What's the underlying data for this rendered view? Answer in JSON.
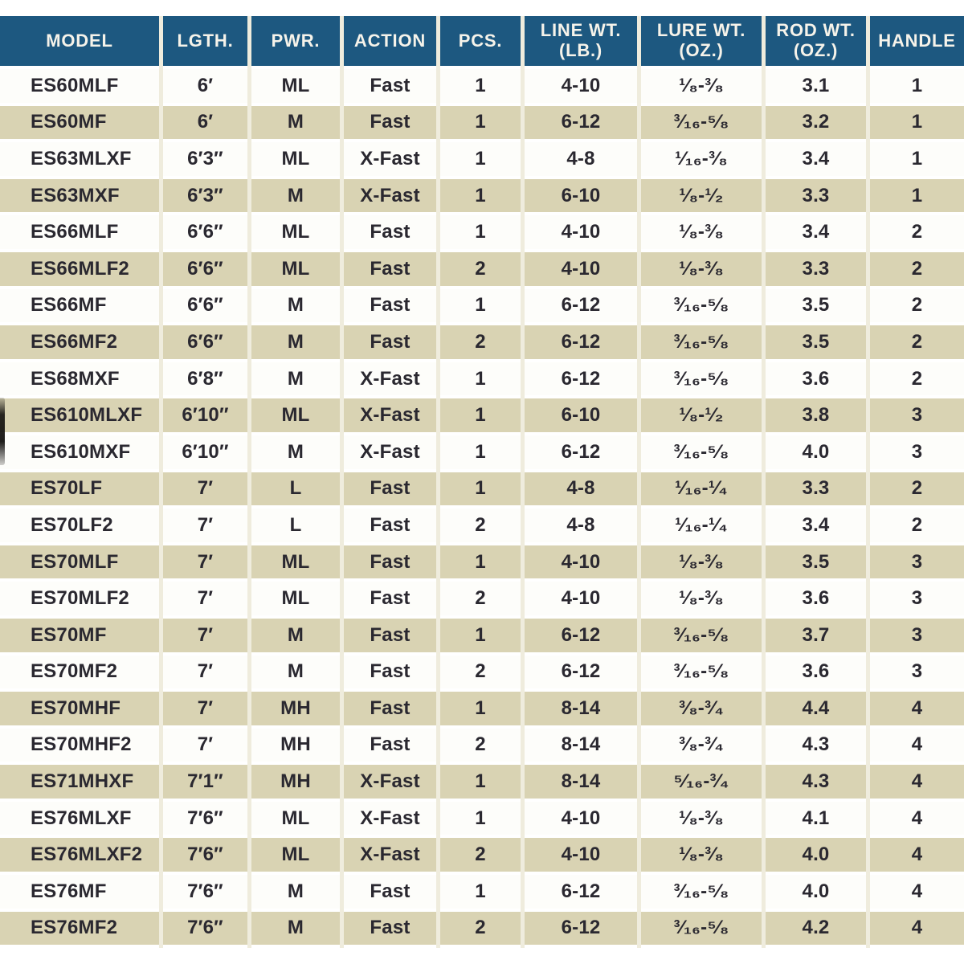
{
  "table": {
    "columns": [
      {
        "id": "model",
        "line1": "MODEL",
        "line2": ""
      },
      {
        "id": "length",
        "line1": "LGTH.",
        "line2": ""
      },
      {
        "id": "power",
        "line1": "PWR.",
        "line2": ""
      },
      {
        "id": "action",
        "line1": "ACTION",
        "line2": ""
      },
      {
        "id": "pieces",
        "line1": "PCS.",
        "line2": ""
      },
      {
        "id": "line_wt",
        "line1": "LINE WT.",
        "line2": "(LB.)"
      },
      {
        "id": "lure_wt",
        "line1": "LURE WT.",
        "line2": "(OZ.)"
      },
      {
        "id": "rod_wt",
        "line1": "ROD WT.",
        "line2": "(OZ.)"
      },
      {
        "id": "handle",
        "line1": "HANDLE",
        "line2": ""
      }
    ],
    "rows": [
      {
        "model": "ES60MLF",
        "length": "6′",
        "power": "ML",
        "action": "Fast",
        "pieces": "1",
        "line_wt": "4-10",
        "lure_wt": "¹⁄₈-³⁄₈",
        "rod_wt": "3.1",
        "handle": "1"
      },
      {
        "model": "ES60MF",
        "length": "6′",
        "power": "M",
        "action": "Fast",
        "pieces": "1",
        "line_wt": "6-12",
        "lure_wt": "³⁄₁₆-⁵⁄₈",
        "rod_wt": "3.2",
        "handle": "1"
      },
      {
        "model": "ES63MLXF",
        "length": "6′3″",
        "power": "ML",
        "action": "X-Fast",
        "pieces": "1",
        "line_wt": "4-8",
        "lure_wt": "¹⁄₁₆-³⁄₈",
        "rod_wt": "3.4",
        "handle": "1"
      },
      {
        "model": "ES63MXF",
        "length": "6′3″",
        "power": "M",
        "action": "X-Fast",
        "pieces": "1",
        "line_wt": "6-10",
        "lure_wt": "¹⁄₈-¹⁄₂",
        "rod_wt": "3.3",
        "handle": "1"
      },
      {
        "model": "ES66MLF",
        "length": "6′6″",
        "power": "ML",
        "action": "Fast",
        "pieces": "1",
        "line_wt": "4-10",
        "lure_wt": "¹⁄₈-³⁄₈",
        "rod_wt": "3.4",
        "handle": "2"
      },
      {
        "model": "ES66MLF2",
        "length": "6′6″",
        "power": "ML",
        "action": "Fast",
        "pieces": "2",
        "line_wt": "4-10",
        "lure_wt": "¹⁄₈-³⁄₈",
        "rod_wt": "3.3",
        "handle": "2"
      },
      {
        "model": "ES66MF",
        "length": "6′6″",
        "power": "M",
        "action": "Fast",
        "pieces": "1",
        "line_wt": "6-12",
        "lure_wt": "³⁄₁₆-⁵⁄₈",
        "rod_wt": "3.5",
        "handle": "2"
      },
      {
        "model": "ES66MF2",
        "length": "6′6″",
        "power": "M",
        "action": "Fast",
        "pieces": "2",
        "line_wt": "6-12",
        "lure_wt": "³⁄₁₆-⁵⁄₈",
        "rod_wt": "3.5",
        "handle": "2"
      },
      {
        "model": "ES68MXF",
        "length": "6′8″",
        "power": "M",
        "action": "X-Fast",
        "pieces": "1",
        "line_wt": "6-12",
        "lure_wt": "³⁄₁₆-⁵⁄₈",
        "rod_wt": "3.6",
        "handle": "2"
      },
      {
        "model": "ES610MLXF",
        "length": "6′10″",
        "power": "ML",
        "action": "X-Fast",
        "pieces": "1",
        "line_wt": "6-10",
        "lure_wt": "¹⁄₈-¹⁄₂",
        "rod_wt": "3.8",
        "handle": "3"
      },
      {
        "model": "ES610MXF",
        "length": "6′10″",
        "power": "M",
        "action": "X-Fast",
        "pieces": "1",
        "line_wt": "6-12",
        "lure_wt": "³⁄₁₆-⁵⁄₈",
        "rod_wt": "4.0",
        "handle": "3"
      },
      {
        "model": "ES70LF",
        "length": "7′",
        "power": "L",
        "action": "Fast",
        "pieces": "1",
        "line_wt": "4-8",
        "lure_wt": "¹⁄₁₆-¹⁄₄",
        "rod_wt": "3.3",
        "handle": "2"
      },
      {
        "model": "ES70LF2",
        "length": "7′",
        "power": "L",
        "action": "Fast",
        "pieces": "2",
        "line_wt": "4-8",
        "lure_wt": "¹⁄₁₆-¹⁄₄",
        "rod_wt": "3.4",
        "handle": "2"
      },
      {
        "model": "ES70MLF",
        "length": "7′",
        "power": "ML",
        "action": "Fast",
        "pieces": "1",
        "line_wt": "4-10",
        "lure_wt": "¹⁄₈-³⁄₈",
        "rod_wt": "3.5",
        "handle": "3"
      },
      {
        "model": "ES70MLF2",
        "length": "7′",
        "power": "ML",
        "action": "Fast",
        "pieces": "2",
        "line_wt": "4-10",
        "lure_wt": "¹⁄₈-³⁄₈",
        "rod_wt": "3.6",
        "handle": "3"
      },
      {
        "model": "ES70MF",
        "length": "7′",
        "power": "M",
        "action": "Fast",
        "pieces": "1",
        "line_wt": "6-12",
        "lure_wt": "³⁄₁₆-⁵⁄₈",
        "rod_wt": "3.7",
        "handle": "3"
      },
      {
        "model": "ES70MF2",
        "length": "7′",
        "power": "M",
        "action": "Fast",
        "pieces": "2",
        "line_wt": "6-12",
        "lure_wt": "³⁄₁₆-⁵⁄₈",
        "rod_wt": "3.6",
        "handle": "3"
      },
      {
        "model": "ES70MHF",
        "length": "7′",
        "power": "MH",
        "action": "Fast",
        "pieces": "1",
        "line_wt": "8-14",
        "lure_wt": "³⁄₈-³⁄₄",
        "rod_wt": "4.4",
        "handle": "4"
      },
      {
        "model": "ES70MHF2",
        "length": "7′",
        "power": "MH",
        "action": "Fast",
        "pieces": "2",
        "line_wt": "8-14",
        "lure_wt": "³⁄₈-³⁄₄",
        "rod_wt": "4.3",
        "handle": "4"
      },
      {
        "model": "ES71MHXF",
        "length": "7′1″",
        "power": "MH",
        "action": "X-Fast",
        "pieces": "1",
        "line_wt": "8-14",
        "lure_wt": "⁵⁄₁₆-³⁄₄",
        "rod_wt": "4.3",
        "handle": "4"
      },
      {
        "model": "ES76MLXF",
        "length": "7′6″",
        "power": "ML",
        "action": "X-Fast",
        "pieces": "1",
        "line_wt": "4-10",
        "lure_wt": "¹⁄₈-³⁄₈",
        "rod_wt": "4.1",
        "handle": "4"
      },
      {
        "model": "ES76MLXF2",
        "length": "7′6″",
        "power": "ML",
        "action": "X-Fast",
        "pieces": "2",
        "line_wt": "4-10",
        "lure_wt": "¹⁄₈-³⁄₈",
        "rod_wt": "4.0",
        "handle": "4"
      },
      {
        "model": "ES76MF",
        "length": "7′6″",
        "power": "M",
        "action": "Fast",
        "pieces": "1",
        "line_wt": "6-12",
        "lure_wt": "³⁄₁₆-⁵⁄₈",
        "rod_wt": "4.0",
        "handle": "4"
      },
      {
        "model": "ES76MF2",
        "length": "7′6″",
        "power": "M",
        "action": "Fast",
        "pieces": "2",
        "line_wt": "6-12",
        "lure_wt": "³⁄₁₆-⁵⁄₈",
        "rod_wt": "4.2",
        "handle": "4"
      }
    ],
    "colors": {
      "header_bg": "#1d5880",
      "header_text": "#f6f3ea",
      "row_bg": "#fdfdfa",
      "row_alt_bg": "#d9d3b3",
      "gutter": "#efecdd",
      "text": "#2a2830"
    }
  }
}
